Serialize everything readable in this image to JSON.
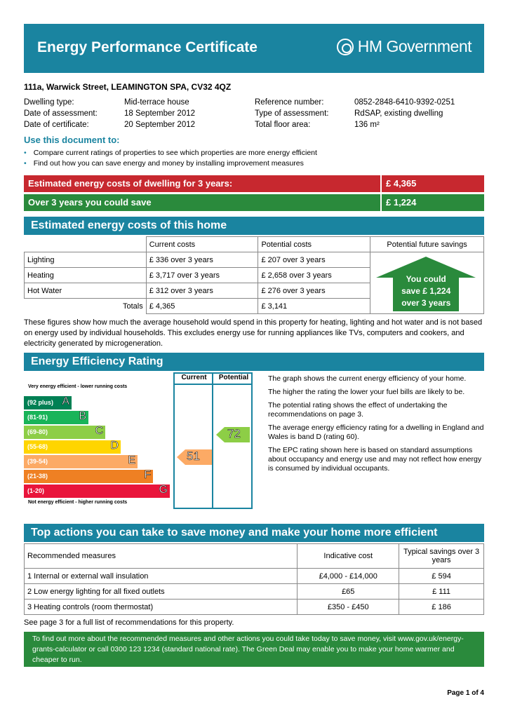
{
  "header": {
    "title": "Energy Performance Certificate",
    "gov": "HM Government"
  },
  "address": "111a, Warwick Street, LEAMINGTON SPA, CV32 4QZ",
  "details": {
    "dwelling_type_label": "Dwelling type:",
    "dwelling_type": "Mid-terrace house",
    "date_assess_label": "Date of assessment:",
    "date_assess": "18   September   2012",
    "date_cert_label": "Date of certificate:",
    "date_cert": "20   September   2012",
    "ref_label": "Reference number:",
    "ref": "0852-2848-6410-9392-0251",
    "type_assess_label": "Type of assessment:",
    "type_assess": "RdSAP, existing dwelling",
    "floor_label": "Total floor area:",
    "floor": "136 m²"
  },
  "use_doc": {
    "title": "Use this document to:",
    "bullets": [
      "Compare current ratings of properties to see which properties are more energy efficient",
      "Find out how you can save energy and money by installing improvement measures"
    ]
  },
  "summary": {
    "est_label": "Estimated energy costs of dwelling for 3 years:",
    "est_value": "£ 4,365",
    "save_label": "Over 3 years you could save",
    "save_value": "£ 1,224"
  },
  "costs": {
    "title": "Estimated energy costs of this home",
    "headers": [
      "",
      "Current costs",
      "Potential costs",
      "Potential future savings"
    ],
    "rows": [
      {
        "name": "Lighting",
        "current": "£ 336 over 3 years",
        "potential": "£ 207 over 3 years"
      },
      {
        "name": "Heating",
        "current": "£ 3,717 over 3 years",
        "potential": "£ 2,658 over 3 years"
      },
      {
        "name": "Hot Water",
        "current": "£ 312 over 3 years",
        "potential": "£ 276 over 3 years"
      }
    ],
    "totals_label": "Totals",
    "totals_current": "£ 4,365",
    "totals_potential": "£ 3,141",
    "savings_arrow": [
      "You could",
      "save £ 1,224",
      "over 3 years"
    ],
    "note": "These figures show how much the average household would spend in this property for heating, lighting and hot water and is not based on energy used by individual households. This excludes energy use for running appliances like TVs, computers and cookers, and electricity generated by microgeneration."
  },
  "eer": {
    "title": "Energy Efficiency Rating",
    "col_current": "Current",
    "col_potential": "Potential",
    "top_label": "Very energy efficient - lower running costs",
    "bottom_label": "Not energy efficient - higher running costs",
    "bands": [
      {
        "range": "(92 plus)",
        "letter": "A",
        "color": "#008054"
      },
      {
        "range": "(81-91)",
        "letter": "B",
        "color": "#19b459"
      },
      {
        "range": "(69-80)",
        "letter": "C",
        "color": "#8dce46"
      },
      {
        "range": "(55-68)",
        "letter": "D",
        "color": "#ffd500"
      },
      {
        "range": "(39-54)",
        "letter": "E",
        "color": "#fcaa65"
      },
      {
        "range": "(21-38)",
        "letter": "F",
        "color": "#ef8023"
      },
      {
        "range": "(1-20)",
        "letter": "G",
        "color": "#e9153b"
      }
    ],
    "current": "51",
    "potential": "72",
    "text": [
      "The graph shows the current energy efficiency of your home.",
      "The higher the rating the lower your fuel bills are likely to be.",
      "The potential rating shows the effect of undertaking the recommendations on page 3.",
      "The average energy efficiency rating for a dwelling in England and Wales is band D (rating 60).",
      "The EPC rating shown here is based on standard assumptions about occupancy and energy use and may not reflect how energy is consumed by individual occupants."
    ]
  },
  "actions": {
    "title": "Top actions you can take to save money and make your home more efficient",
    "h_measures": "Recommended measures",
    "h_cost": "Indicative cost",
    "h_savings": "Typical savings over 3 years",
    "rows": [
      {
        "measure": "1  Internal or external wall insulation",
        "cost": "£4,000 - £14,000",
        "saving": "£ 594"
      },
      {
        "measure": "2  Low energy lighting for all fixed outlets",
        "cost": "£65",
        "saving": "£ 111"
      },
      {
        "measure": "3  Heating controls (room thermostat)",
        "cost": "£350 - £450",
        "saving": "£ 186"
      }
    ],
    "see_page": "See page 3 for a full list of recommendations for this property."
  },
  "footer": {
    "text": "To find out more about the recommended measures and other actions you could take today to save money, visit www.gov.uk/energy-grants-calculator or call 0300 123 1234 (standard national rate). The Green Deal may enable you to make your home warmer and cheaper to run.",
    "page": "Page 1 of 4"
  }
}
